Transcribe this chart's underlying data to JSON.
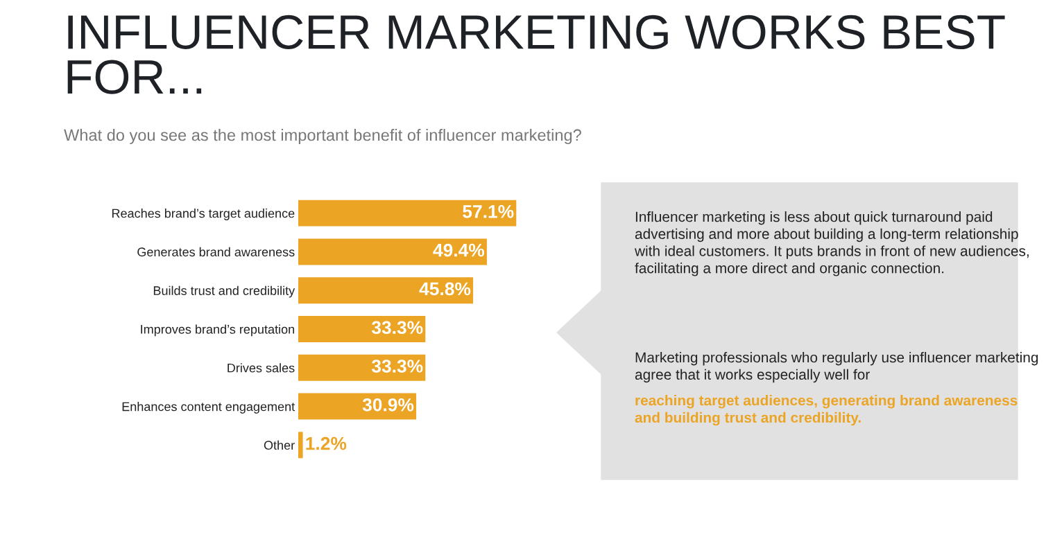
{
  "chart_data": {
    "type": "bar",
    "orientation": "horizontal",
    "title": "INFLUENCER MARKETING WORKS BEST FOR...",
    "subtitle": "What do you see as the most important benefit of influencer marketing?",
    "categories": [
      "Reaches brand’s target audience",
      "Generates brand awareness",
      "Builds trust and credibility",
      "Improves brand’s reputation",
      "Drives sales",
      "Enhances content engagement",
      "Other"
    ],
    "values": [
      57.1,
      49.4,
      45.8,
      33.3,
      33.3,
      30.9,
      1.2
    ],
    "value_labels": [
      "57.1%",
      "49.4%",
      "45.8%",
      "33.3%",
      "33.3%",
      "30.9%",
      "1.2%"
    ],
    "color": "#eba424",
    "tick_labels": "y",
    "grid": false,
    "legend": false,
    "annotations": [
      "Influencer marketing is less about quick turnaround paid advertising and more about building a long-term relationship with ideal customers. It puts brands in front of new audiences, facilitating a more direct and organic connection.",
      "Marketing professionals who regularly use influencer marketing agree that it works especially well for",
      "reaching target audiences, generating brand awareness and building trust and credibility."
    ]
  }
}
